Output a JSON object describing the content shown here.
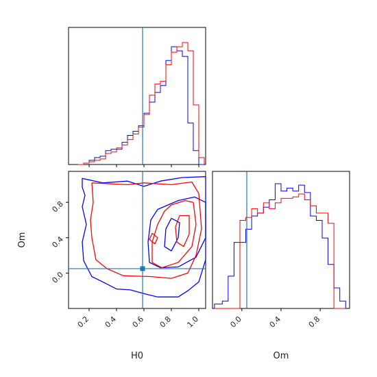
{
  "chart_data": {
    "type": "corner",
    "parameters": [
      "H0",
      "Om"
    ],
    "truth": {
      "H0": 0.59,
      "Om": 0.05
    },
    "colors": {
      "series_a": "#0000ff",
      "series_b": "#ff0000",
      "truth": "#1f77b4"
    },
    "grid": false,
    "h0_ticks": [
      "0.2",
      "0.4",
      "0.6",
      "0.8",
      "1.0"
    ],
    "om_ticks": [
      "0.0",
      "0.4",
      "0.8"
    ],
    "h0_hist": {
      "xlim": [
        0.05,
        1.05
      ],
      "bin_edges": [
        0.12,
        0.16,
        0.2,
        0.24,
        0.28,
        0.32,
        0.36,
        0.4,
        0.44,
        0.48,
        0.52,
        0.56,
        0.6,
        0.64,
        0.68,
        0.72,
        0.76,
        0.8,
        0.84,
        0.88,
        0.92,
        0.96,
        1.0,
        1.04
      ],
      "series": [
        {
          "color_key": "series_a",
          "values": [
            0,
            1,
            3,
            5,
            6,
            10,
            11,
            11,
            16,
            21,
            24,
            28,
            37,
            45,
            52,
            57,
            75,
            85,
            82,
            78,
            30,
            10,
            0
          ]
        },
        {
          "color_key": "series_b",
          "values": [
            0,
            1,
            2,
            3,
            4,
            8,
            9,
            12,
            14,
            18,
            22,
            27,
            36,
            50,
            58,
            60,
            72,
            81,
            85,
            88,
            82,
            43,
            5
          ]
        }
      ]
    },
    "om_hist": {
      "xlim": [
        -0.3,
        1.1
      ],
      "bin_edges": [
        -0.28,
        -0.2,
        -0.14,
        -0.08,
        -0.02,
        0.04,
        0.1,
        0.16,
        0.22,
        0.28,
        0.34,
        0.4,
        0.46,
        0.52,
        0.58,
        0.64,
        0.7,
        0.76,
        0.82,
        0.88,
        0.94,
        1.0,
        1.06
      ],
      "series": [
        {
          "color_key": "series_a",
          "values": [
            3,
            5,
            22,
            45,
            45,
            54,
            63,
            65,
            69,
            74,
            85,
            80,
            82,
            80,
            84,
            79,
            63,
            60,
            48,
            30,
            14,
            5
          ]
        },
        {
          "color_key": "series_b",
          "values": [
            0,
            0,
            0,
            0,
            60,
            62,
            68,
            65,
            72,
            68,
            72,
            75,
            75,
            76,
            78,
            74,
            70,
            65,
            65,
            58,
            0,
            0
          ]
        }
      ]
    },
    "joint": {
      "xlim": [
        0.05,
        1.05
      ],
      "ylim": [
        -0.4,
        1.15
      ],
      "contours": [
        {
          "color_key": "series_a",
          "points": [
            [
              0.15,
              0.97
            ],
            [
              0.15,
              1.07
            ],
            [
              0.3,
              1.02
            ],
            [
              0.48,
              1.04
            ],
            [
              0.6,
              0.98
            ],
            [
              0.72,
              1.04
            ],
            [
              0.88,
              1.08
            ],
            [
              1.05,
              1.09
            ],
            [
              1.05,
              0.7
            ],
            [
              1.05,
              0.15
            ],
            [
              1.0,
              -0.1
            ],
            [
              0.92,
              -0.2
            ],
            [
              0.85,
              -0.27
            ],
            [
              0.7,
              -0.27
            ],
            [
              0.62,
              -0.24
            ],
            [
              0.5,
              -0.19
            ],
            [
              0.4,
              -0.18
            ],
            [
              0.3,
              -0.1
            ],
            [
              0.22,
              -0.04
            ],
            [
              0.16,
              0.14
            ],
            [
              0.15,
              0.35
            ],
            [
              0.18,
              0.55
            ],
            [
              0.15,
              0.75
            ],
            [
              0.17,
              0.88
            ],
            [
              0.15,
              0.97
            ]
          ]
        },
        {
          "color_key": "series_a",
          "points": [
            [
              0.7,
              0.72
            ],
            [
              0.85,
              0.82
            ],
            [
              0.97,
              0.86
            ],
            [
              1.05,
              0.8
            ],
            [
              1.05,
              0.4
            ],
            [
              0.98,
              0.18
            ],
            [
              0.85,
              0.07
            ],
            [
              0.72,
              0.06
            ],
            [
              0.64,
              0.12
            ],
            [
              0.63,
              0.35
            ],
            [
              0.65,
              0.6
            ],
            [
              0.7,
              0.72
            ]
          ]
        },
        {
          "color_key": "series_a",
          "points": [
            [
              0.8,
              0.62
            ],
            [
              0.86,
              0.57
            ],
            [
              0.85,
              0.4
            ],
            [
              0.8,
              0.25
            ],
            [
              0.75,
              0.3
            ],
            [
              0.76,
              0.5
            ],
            [
              0.8,
              0.62
            ]
          ]
        },
        {
          "color_key": "series_b",
          "points": [
            [
              0.22,
              1.02
            ],
            [
              0.48,
              1.0
            ],
            [
              0.6,
              1.02
            ],
            [
              0.8,
              1.0
            ],
            [
              0.95,
              1.03
            ],
            [
              1.0,
              0.9
            ],
            [
              1.02,
              0.5
            ],
            [
              0.98,
              0.2
            ],
            [
              0.92,
              0.0
            ],
            [
              0.8,
              -0.06
            ],
            [
              0.65,
              -0.04
            ],
            [
              0.45,
              -0.03
            ],
            [
              0.33,
              0.05
            ],
            [
              0.25,
              0.15
            ],
            [
              0.22,
              0.4
            ],
            [
              0.21,
              0.6
            ],
            [
              0.23,
              0.8
            ],
            [
              0.22,
              1.02
            ]
          ]
        },
        {
          "color_key": "series_b",
          "points": [
            [
              0.8,
              0.77
            ],
            [
              0.9,
              0.82
            ],
            [
              0.96,
              0.8
            ],
            [
              0.98,
              0.55
            ],
            [
              0.95,
              0.3
            ],
            [
              0.85,
              0.12
            ],
            [
              0.73,
              0.06
            ],
            [
              0.66,
              0.12
            ],
            [
              0.66,
              0.35
            ],
            [
              0.7,
              0.55
            ],
            [
              0.75,
              0.7
            ],
            [
              0.8,
              0.77
            ]
          ]
        },
        {
          "color_key": "series_b",
          "points": [
            [
              0.86,
              0.65
            ],
            [
              0.93,
              0.65
            ],
            [
              0.93,
              0.44
            ],
            [
              0.89,
              0.3
            ],
            [
              0.84,
              0.35
            ],
            [
              0.83,
              0.52
            ],
            [
              0.86,
              0.65
            ]
          ]
        },
        {
          "color_key": "series_b",
          "points": [
            [
              0.66,
              0.45
            ],
            [
              0.7,
              0.4
            ],
            [
              0.68,
              0.33
            ],
            [
              0.64,
              0.38
            ],
            [
              0.66,
              0.45
            ]
          ]
        }
      ]
    }
  }
}
